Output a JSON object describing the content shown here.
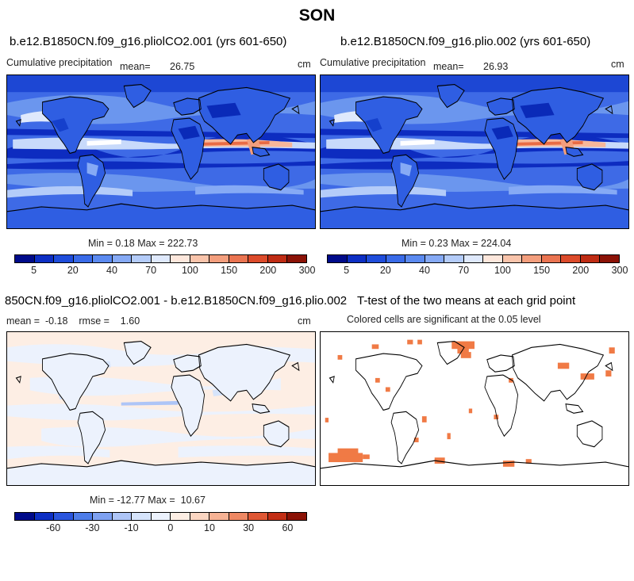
{
  "figure": {
    "title": "SON"
  },
  "panels": {
    "p1": {
      "title": "b.e12.B1850CN.f09_g16.pliolCO2.001 (yrs 601-650)",
      "left_label": "Cumulative precipitation",
      "mean_label": "mean=",
      "mean_value": "26.75",
      "units": "cm",
      "min_max": "Min =    0.18 Max = 222.73"
    },
    "p2": {
      "title": "b.e12.B1850CN.f09_g16.plio.002 (yrs 601-650)",
      "left_label": "Cumulative precipitation",
      "mean_label": "mean=",
      "mean_value": "26.93",
      "units": "cm",
      "min_max": "Min =    0.23 Max = 224.04"
    },
    "p3": {
      "title": "850CN.f09_g16.pliolCO2.001 - b.e12.B1850CN.f09_g16.plio.002",
      "stats": "mean =  -0.18    rmse =    1.60",
      "units": "cm",
      "min_max": "Min = -12.77 Max =  10.67"
    },
    "p4": {
      "title": "T-test of the two means at each grid point",
      "subtitle": "Colored cells are significant at the 0.05 level"
    }
  },
  "colorbars": {
    "precip": {
      "colors": [
        "#000b8a",
        "#0d2fc4",
        "#1f4ddb",
        "#3a6be8",
        "#5b8af0",
        "#86aaf5",
        "#b4ccf9",
        "#dfe9fc",
        "#fde7dc",
        "#f9c4ab",
        "#f39e7d",
        "#ea7451",
        "#dc4b2b",
        "#bf2c14",
        "#8b1206"
      ],
      "tick_labels": [
        "5",
        "20",
        "40",
        "70",
        "100",
        "150",
        "200",
        "300"
      ]
    },
    "diff": {
      "colors": [
        "#000b8a",
        "#0d2fc4",
        "#2a55dd",
        "#4e7de9",
        "#7ea1f1",
        "#aec5f7",
        "#d6e4fb",
        "#ecf2fd",
        "#fdeee4",
        "#fbd6c2",
        "#f6b294",
        "#ee8863",
        "#df5734",
        "#c22e15",
        "#8b1206"
      ],
      "tick_labels": [
        "-60",
        "-30",
        "-10",
        "0",
        "10",
        "30",
        "60"
      ]
    }
  },
  "chart_data": [
    {
      "type": "heatmap",
      "title": "b.e12.B1850CN.f09_g16.pliolCO2.001 (yrs 601-650)",
      "variable": "Cumulative precipitation",
      "units": "cm",
      "mean": 26.75,
      "min": 0.18,
      "max": 222.73,
      "contour_levels": [
        5,
        10,
        20,
        30,
        40,
        50,
        70,
        85,
        100,
        125,
        150,
        175,
        200,
        250,
        300
      ]
    },
    {
      "type": "heatmap",
      "title": "b.e12.B1850CN.f09_g16.plio.002 (yrs 601-650)",
      "variable": "Cumulative precipitation",
      "units": "cm",
      "mean": 26.93,
      "min": 0.23,
      "max": 224.04,
      "contour_levels": [
        5,
        10,
        20,
        30,
        40,
        50,
        70,
        85,
        100,
        125,
        150,
        175,
        200,
        250,
        300
      ]
    },
    {
      "type": "heatmap",
      "title": "850CN.f09_g16.pliolCO2.001 - b.e12.B1850CN.f09_g16.plio.002",
      "units": "cm",
      "mean": -0.18,
      "rmse": 1.6,
      "min": -12.77,
      "max": 10.67,
      "contour_levels": [
        -80,
        -60,
        -45,
        -30,
        -20,
        -10,
        -5,
        0,
        5,
        10,
        20,
        30,
        45,
        60,
        80
      ]
    },
    {
      "type": "heatmap",
      "title": "T-test of the two means at each grid point",
      "subtitle": "Colored cells are significant at the 0.05 level",
      "significance_level": 0.05,
      "significant_color": "#f07a45"
    }
  ]
}
